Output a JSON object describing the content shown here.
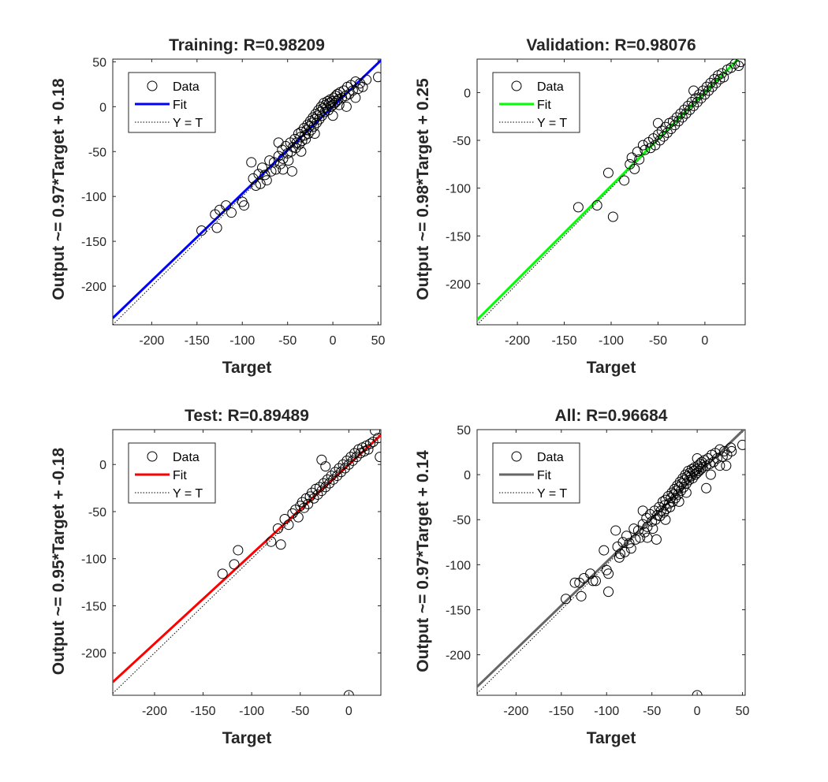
{
  "chart_data": [
    {
      "type": "scatter",
      "title": "Training: R=0.98209",
      "xlabel": "Target",
      "ylabel": "Output ~= 0.97*Target + 0.18",
      "xlim": [
        -243,
        53
      ],
      "ylim": [
        -243,
        53
      ],
      "xticks": [
        -200,
        -150,
        -100,
        -50,
        0,
        50
      ],
      "yticks": [
        -200,
        -150,
        -100,
        -50,
        0,
        50
      ],
      "fit": {
        "slope": 0.97,
        "intercept": 0.18,
        "color": "#0000ff"
      },
      "legend": {
        "position": "top-left",
        "entries": [
          "Data",
          "Fit",
          "Y = T"
        ]
      },
      "points": [
        [
          -145,
          -138
        ],
        [
          -130,
          -120
        ],
        [
          -128,
          -135
        ],
        [
          -125,
          -115
        ],
        [
          -118,
          -110
        ],
        [
          -112,
          -118
        ],
        [
          -100,
          -106
        ],
        [
          -98,
          -110
        ],
        [
          -88,
          -80
        ],
        [
          -85,
          -88
        ],
        [
          -82,
          -75
        ],
        [
          -80,
          -86
        ],
        [
          -78,
          -68
        ],
        [
          -75,
          -76
        ],
        [
          -73,
          -82
        ],
        [
          -70,
          -60
        ],
        [
          -68,
          -72
        ],
        [
          -65,
          -62
        ],
        [
          -63,
          -70
        ],
        [
          -60,
          -55
        ],
        [
          -58,
          -64
        ],
        [
          -56,
          -48
        ],
        [
          -55,
          -58
        ],
        [
          -52,
          -44
        ],
        [
          -50,
          -52
        ],
        [
          -49,
          -60
        ],
        [
          -47,
          -40
        ],
        [
          -46,
          -50
        ],
        [
          -45,
          -72
        ],
        [
          -44,
          -45
        ],
        [
          -42,
          -36
        ],
        [
          -41,
          -46
        ],
        [
          -40,
          -40
        ],
        [
          -38,
          -30
        ],
        [
          -37,
          -42
        ],
        [
          -36,
          -34
        ],
        [
          -35,
          -28
        ],
        [
          -34,
          -38
        ],
        [
          -32,
          -24
        ],
        [
          -31,
          -32
        ],
        [
          -30,
          -36
        ],
        [
          -29,
          -26
        ],
        [
          -28,
          -20
        ],
        [
          -27,
          -30
        ],
        [
          -26,
          -22
        ],
        [
          -25,
          -16
        ],
        [
          -24,
          -26
        ],
        [
          -23,
          -18
        ],
        [
          -22,
          -12
        ],
        [
          -21,
          -22
        ],
        [
          -20,
          -14
        ],
        [
          -19,
          -8
        ],
        [
          -18,
          -18
        ],
        [
          -17,
          -10
        ],
        [
          -16,
          -4
        ],
        [
          -15,
          -14
        ],
        [
          -14,
          -6
        ],
        [
          -13,
          0
        ],
        [
          -12,
          -10
        ],
        [
          -11,
          -2
        ],
        [
          -10,
          4
        ],
        [
          -9,
          -6
        ],
        [
          -8,
          2
        ],
        [
          -7,
          -2
        ],
        [
          -6,
          6
        ],
        [
          -5,
          -4
        ],
        [
          -4,
          4
        ],
        [
          -3,
          8
        ],
        [
          -2,
          0
        ],
        [
          -1,
          6
        ],
        [
          0,
          2
        ],
        [
          1,
          10
        ],
        [
          2,
          4
        ],
        [
          3,
          12
        ],
        [
          4,
          6
        ],
        [
          5,
          14
        ],
        [
          6,
          8
        ],
        [
          7,
          2
        ],
        [
          8,
          16
        ],
        [
          10,
          10
        ],
        [
          12,
          18
        ],
        [
          14,
          12
        ],
        [
          16,
          22
        ],
        [
          18,
          14
        ],
        [
          20,
          24
        ],
        [
          22,
          18
        ],
        [
          25,
          28
        ],
        [
          28,
          20
        ],
        [
          30,
          26
        ],
        [
          33,
          22
        ],
        [
          37,
          30
        ],
        [
          50,
          33
        ],
        [
          -90,
          -62
        ],
        [
          -60,
          -40
        ],
        [
          -20,
          -30
        ],
        [
          0,
          -10
        ],
        [
          15,
          0
        ],
        [
          25,
          10
        ],
        [
          -35,
          -50
        ],
        [
          -55,
          -70
        ]
      ]
    },
    {
      "type": "scatter",
      "title": "Validation: R=0.98076",
      "xlabel": "Target",
      "ylabel": "Output ~= 0.98*Target + 0.25",
      "xlim": [
        -243,
        43
      ],
      "ylim": [
        -243,
        35
      ],
      "xticks": [
        -200,
        -150,
        -100,
        -50,
        0
      ],
      "yticks": [
        -200,
        -150,
        -100,
        -50,
        0
      ],
      "fit": {
        "slope": 0.98,
        "intercept": 0.25,
        "color": "#00ff00"
      },
      "legend": {
        "position": "top-left",
        "entries": [
          "Data",
          "Fit",
          "Y = T"
        ]
      },
      "points": [
        [
          -135,
          -120
        ],
        [
          -115,
          -118
        ],
        [
          -103,
          -84
        ],
        [
          -98,
          -130
        ],
        [
          -86,
          -92
        ],
        [
          -80,
          -75
        ],
        [
          -78,
          -68
        ],
        [
          -75,
          -80
        ],
        [
          -72,
          -62
        ],
        [
          -70,
          -70
        ],
        [
          -66,
          -55
        ],
        [
          -64,
          -60
        ],
        [
          -60,
          -52
        ],
        [
          -58,
          -58
        ],
        [
          -55,
          -48
        ],
        [
          -53,
          -55
        ],
        [
          -50,
          -44
        ],
        [
          -48,
          -50
        ],
        [
          -46,
          -40
        ],
        [
          -44,
          -46
        ],
        [
          -42,
          -36
        ],
        [
          -40,
          -42
        ],
        [
          -38,
          -32
        ],
        [
          -36,
          -38
        ],
        [
          -34,
          -30
        ],
        [
          -32,
          -34
        ],
        [
          -30,
          -26
        ],
        [
          -28,
          -30
        ],
        [
          -26,
          -22
        ],
        [
          -24,
          -26
        ],
        [
          -22,
          -18
        ],
        [
          -20,
          -22
        ],
        [
          -18,
          -14
        ],
        [
          -16,
          -18
        ],
        [
          -14,
          -10
        ],
        [
          -12,
          -14
        ],
        [
          -10,
          -6
        ],
        [
          -8,
          -10
        ],
        [
          -6,
          -2
        ],
        [
          -4,
          -6
        ],
        [
          -2,
          2
        ],
        [
          0,
          -2
        ],
        [
          2,
          6
        ],
        [
          4,
          2
        ],
        [
          6,
          10
        ],
        [
          8,
          6
        ],
        [
          10,
          14
        ],
        [
          12,
          10
        ],
        [
          14,
          18
        ],
        [
          16,
          14
        ],
        [
          18,
          20
        ],
        [
          20,
          16
        ],
        [
          24,
          24
        ],
        [
          28,
          26
        ],
        [
          32,
          30
        ],
        [
          36,
          28
        ],
        [
          38,
          32
        ],
        [
          -12,
          2
        ],
        [
          -50,
          -32
        ]
      ]
    },
    {
      "type": "scatter",
      "title": "Test: R=0.89489",
      "xlabel": "Target",
      "ylabel": "Output ~= 0.95*Target + -0.18",
      "xlim": [
        -243,
        33
      ],
      "ylim": [
        -245,
        37
      ],
      "xticks": [
        -200,
        -150,
        -100,
        -50,
        0
      ],
      "yticks": [
        -200,
        -150,
        -100,
        -50,
        0
      ],
      "fit": {
        "slope": 0.95,
        "intercept": -0.18,
        "color": "#ff0000"
      },
      "legend": {
        "position": "top-left",
        "entries": [
          "Data",
          "Fit",
          "Y = T"
        ]
      },
      "points": [
        [
          -130,
          -116
        ],
        [
          -118,
          -106
        ],
        [
          -114,
          -91
        ],
        [
          -80,
          -82
        ],
        [
          -73,
          -68
        ],
        [
          -70,
          -85
        ],
        [
          -66,
          -58
        ],
        [
          -62,
          -64
        ],
        [
          -58,
          -52
        ],
        [
          -55,
          -48
        ],
        [
          -52,
          -56
        ],
        [
          -50,
          -44
        ],
        [
          -48,
          -40
        ],
        [
          -46,
          -46
        ],
        [
          -44,
          -36
        ],
        [
          -42,
          -42
        ],
        [
          -40,
          -34
        ],
        [
          -38,
          -30
        ],
        [
          -36,
          -36
        ],
        [
          -34,
          -26
        ],
        [
          -32,
          -32
        ],
        [
          -30,
          -24
        ],
        [
          -28,
          -28
        ],
        [
          -26,
          -20
        ],
        [
          -24,
          -24
        ],
        [
          -22,
          -16
        ],
        [
          -20,
          -20
        ],
        [
          -18,
          -12
        ],
        [
          -16,
          -16
        ],
        [
          -14,
          -8
        ],
        [
          -12,
          -12
        ],
        [
          -10,
          -4
        ],
        [
          -8,
          -8
        ],
        [
          -6,
          0
        ],
        [
          -4,
          -4
        ],
        [
          -2,
          4
        ],
        [
          0,
          0
        ],
        [
          2,
          8
        ],
        [
          4,
          4
        ],
        [
          6,
          12
        ],
        [
          8,
          8
        ],
        [
          10,
          16
        ],
        [
          12,
          12
        ],
        [
          14,
          18
        ],
        [
          16,
          14
        ],
        [
          18,
          20
        ],
        [
          20,
          16
        ],
        [
          22,
          22
        ],
        [
          25,
          24
        ],
        [
          27,
          36
        ],
        [
          30,
          28
        ],
        [
          32,
          8
        ],
        [
          0,
          -245
        ],
        [
          -24,
          -2
        ],
        [
          -28,
          5
        ]
      ]
    },
    {
      "type": "scatter",
      "title": "All: R=0.96684",
      "xlabel": "Target",
      "ylabel": "Output ~= 0.97*Target + 0.14",
      "xlim": [
        -243,
        53
      ],
      "ylim": [
        -245,
        50
      ],
      "xticks": [
        -200,
        -150,
        -100,
        -50,
        0,
        50
      ],
      "yticks": [
        -200,
        -150,
        -100,
        -50,
        0,
        50
      ],
      "fit": {
        "slope": 0.97,
        "intercept": 0.14,
        "color": "#666666"
      },
      "legend": {
        "position": "top-left",
        "entries": [
          "Data",
          "Fit",
          "Y = T"
        ]
      },
      "points": [
        [
          -145,
          -138
        ],
        [
          -135,
          -120
        ],
        [
          -130,
          -120
        ],
        [
          -128,
          -135
        ],
        [
          -125,
          -115
        ],
        [
          -118,
          -110
        ],
        [
          -115,
          -118
        ],
        [
          -112,
          -118
        ],
        [
          -103,
          -84
        ],
        [
          -100,
          -106
        ],
        [
          -98,
          -130
        ],
        [
          -98,
          -110
        ],
        [
          -88,
          -80
        ],
        [
          -86,
          -92
        ],
        [
          -85,
          -88
        ],
        [
          -82,
          -75
        ],
        [
          -80,
          -86
        ],
        [
          -78,
          -68
        ],
        [
          -75,
          -76
        ],
        [
          -73,
          -82
        ],
        [
          -70,
          -60
        ],
        [
          -68,
          -72
        ],
        [
          -65,
          -62
        ],
        [
          -63,
          -70
        ],
        [
          -60,
          -55
        ],
        [
          -58,
          -64
        ],
        [
          -56,
          -48
        ],
        [
          -55,
          -58
        ],
        [
          -52,
          -44
        ],
        [
          -50,
          -52
        ],
        [
          -49,
          -60
        ],
        [
          -47,
          -40
        ],
        [
          -46,
          -50
        ],
        [
          -45,
          -72
        ],
        [
          -44,
          -45
        ],
        [
          -42,
          -36
        ],
        [
          -41,
          -46
        ],
        [
          -40,
          -40
        ],
        [
          -38,
          -30
        ],
        [
          -37,
          -42
        ],
        [
          -36,
          -34
        ],
        [
          -35,
          -28
        ],
        [
          -34,
          -38
        ],
        [
          -32,
          -24
        ],
        [
          -31,
          -32
        ],
        [
          -30,
          -36
        ],
        [
          -29,
          -26
        ],
        [
          -28,
          -20
        ],
        [
          -27,
          -30
        ],
        [
          -26,
          -22
        ],
        [
          -25,
          -16
        ],
        [
          -24,
          -26
        ],
        [
          -23,
          -18
        ],
        [
          -22,
          -12
        ],
        [
          -21,
          -22
        ],
        [
          -20,
          -14
        ],
        [
          -19,
          -8
        ],
        [
          -18,
          -18
        ],
        [
          -17,
          -10
        ],
        [
          -16,
          -4
        ],
        [
          -15,
          -14
        ],
        [
          -14,
          -6
        ],
        [
          -13,
          0
        ],
        [
          -12,
          -10
        ],
        [
          -11,
          -2
        ],
        [
          -10,
          4
        ],
        [
          -9,
          -6
        ],
        [
          -8,
          2
        ],
        [
          -7,
          -2
        ],
        [
          -6,
          6
        ],
        [
          -5,
          -4
        ],
        [
          -4,
          4
        ],
        [
          -3,
          8
        ],
        [
          -2,
          0
        ],
        [
          -1,
          6
        ],
        [
          0,
          2
        ],
        [
          1,
          10
        ],
        [
          2,
          4
        ],
        [
          3,
          12
        ],
        [
          4,
          6
        ],
        [
          5,
          14
        ],
        [
          6,
          8
        ],
        [
          8,
          16
        ],
        [
          10,
          10
        ],
        [
          12,
          18
        ],
        [
          14,
          12
        ],
        [
          16,
          22
        ],
        [
          18,
          14
        ],
        [
          20,
          24
        ],
        [
          22,
          18
        ],
        [
          25,
          28
        ],
        [
          28,
          20
        ],
        [
          30,
          26
        ],
        [
          33,
          22
        ],
        [
          37,
          30
        ],
        [
          50,
          33
        ],
        [
          0,
          -245
        ],
        [
          -90,
          -62
        ],
        [
          -60,
          -40
        ],
        [
          -20,
          -30
        ],
        [
          15,
          0
        ],
        [
          25,
          10
        ],
        [
          -35,
          -50
        ],
        [
          -55,
          -70
        ],
        [
          -12,
          -20
        ],
        [
          0,
          18
        ],
        [
          10,
          -15
        ],
        [
          32,
          10
        ],
        [
          38,
          26
        ]
      ]
    }
  ]
}
